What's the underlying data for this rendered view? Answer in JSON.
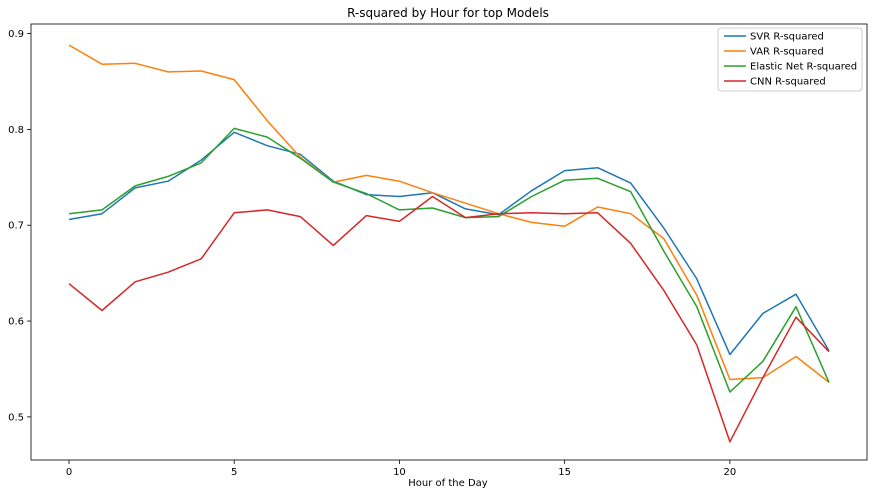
{
  "chart_data": {
    "type": "line",
    "title": "R-squared by Hour for top Models",
    "xlabel": "Hour of the Day",
    "ylabel": "",
    "x": [
      0,
      1,
      2,
      3,
      4,
      5,
      6,
      7,
      8,
      9,
      10,
      11,
      12,
      13,
      14,
      15,
      16,
      17,
      18,
      19,
      20,
      21,
      22,
      23
    ],
    "xlim": [
      -1.15,
      24.15
    ],
    "ylim": [
      0.455,
      0.91
    ],
    "xticks": [
      0,
      5,
      10,
      15,
      20
    ],
    "yticks": [
      0.5,
      0.6,
      0.7,
      0.8,
      0.9
    ],
    "grid": false,
    "legend_position": "top-right",
    "series": [
      {
        "name": "SVR R-squared",
        "color": "#1f77b4",
        "values": [
          0.706,
          0.712,
          0.739,
          0.746,
          0.768,
          0.797,
          0.783,
          0.774,
          0.746,
          0.732,
          0.73,
          0.734,
          0.717,
          0.711,
          0.736,
          0.757,
          0.76,
          0.744,
          0.697,
          0.644,
          0.565,
          0.608,
          0.628,
          0.569
        ]
      },
      {
        "name": "VAR R-squared",
        "color": "#ff7f0e",
        "values": [
          0.888,
          0.868,
          0.869,
          0.86,
          0.861,
          0.852,
          0.809,
          0.771,
          0.745,
          0.752,
          0.746,
          0.734,
          0.723,
          0.712,
          0.703,
          0.699,
          0.719,
          0.712,
          0.686,
          0.627,
          0.539,
          0.541,
          0.563,
          0.536
        ]
      },
      {
        "name": "Elastic Net R-squared",
        "color": "#2ca02c",
        "values": [
          0.712,
          0.716,
          0.741,
          0.751,
          0.765,
          0.801,
          0.792,
          0.77,
          0.745,
          0.733,
          0.716,
          0.718,
          0.708,
          0.709,
          0.73,
          0.747,
          0.749,
          0.735,
          0.673,
          0.615,
          0.526,
          0.558,
          0.615,
          0.536
        ]
      },
      {
        "name": "CNN R-squared",
        "color": "#d62728",
        "values": [
          0.639,
          0.611,
          0.641,
          0.651,
          0.665,
          0.713,
          0.716,
          0.709,
          0.679,
          0.71,
          0.704,
          0.73,
          0.708,
          0.712,
          0.713,
          0.712,
          0.713,
          0.681,
          0.632,
          0.575,
          0.474,
          0.541,
          0.604,
          0.568
        ]
      }
    ]
  }
}
